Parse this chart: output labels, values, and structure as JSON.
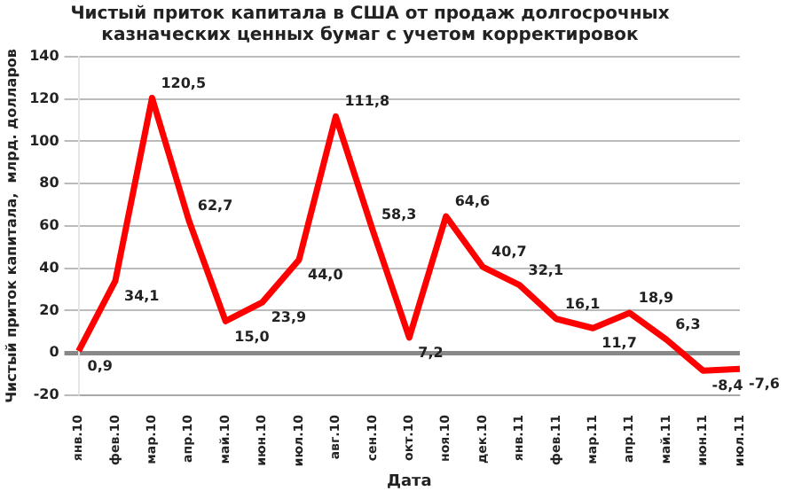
{
  "chart_data": {
    "type": "line",
    "title": "Чистый приток капитала в США от продаж долгосрочных казначеских ценных бумаг с учетом корректировок",
    "xlabel": "Дата",
    "ylabel": "Чистый приток капитала,  млрд. долларов",
    "categories": [
      "янв.10",
      "фев.10",
      "мар.10",
      "апр.10",
      "май.10",
      "июн.10",
      "июл.10",
      "авг.10",
      "сен.10",
      "окт.10",
      "ноя.10",
      "дек.10",
      "янв.11",
      "фев.11",
      "мар.11",
      "апр.11",
      "май.11",
      "июн.11",
      "июл.11"
    ],
    "series": [
      {
        "color": "#ff0000",
        "values": [
          0.9,
          34.1,
          120.5,
          62.7,
          15.0,
          23.9,
          44.0,
          111.8,
          58.3,
          7.2,
          64.6,
          40.7,
          32.1,
          16.1,
          11.7,
          18.9,
          6.3,
          -8.4,
          -7.6
        ],
        "value_labels": [
          "0,9",
          "34,1",
          "120,5",
          "62,7",
          "15,0",
          "23,9",
          "44,0",
          "111,8",
          "58,3",
          "7,2",
          "64,6",
          "40,7",
          "32,1",
          "16,1",
          "11,7",
          "18,9",
          "6,3",
          "-8,4",
          "-7,6"
        ]
      }
    ],
    "ylim": [
      -20,
      140
    ],
    "yticks": [
      -20,
      0,
      20,
      40,
      60,
      80,
      100,
      120,
      140
    ],
    "grid": "y",
    "legend": false,
    "marker": "none",
    "line_style": "solid"
  }
}
